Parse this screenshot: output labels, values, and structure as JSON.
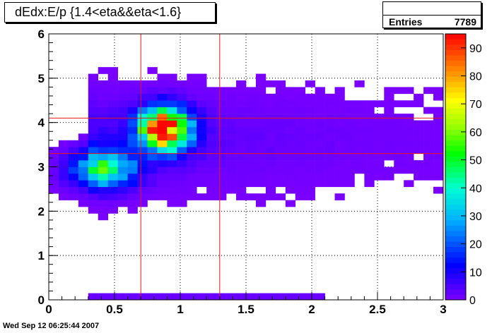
{
  "header": {
    "title": "dEdx:E/p {1.4<eta&&eta<1.6}"
  },
  "stats": {
    "entries_label": "Entries",
    "entries_value": "7789"
  },
  "footer": {
    "date": "Wed Sep 12 06:25:44 2007"
  },
  "colors": {
    "cut_line": "#e8161a",
    "grid": "#000000",
    "background": "#ffffff"
  },
  "chart_data": {
    "type": "heatmap",
    "title": "dEdx:E/p {1.4<eta&&eta<1.6}",
    "xlabel": "",
    "ylabel": "",
    "xlim": [
      0,
      3
    ],
    "ylim": [
      0,
      6
    ],
    "zlim": [
      0,
      95
    ],
    "bins": {
      "nx": 40,
      "ny": 40
    },
    "x_ticks": [
      0,
      0.5,
      1,
      1.5,
      2,
      2.5,
      3
    ],
    "x_tick_labels": [
      "0",
      "0.5",
      "1",
      "1.5",
      "2",
      "2.5",
      "3"
    ],
    "y_ticks": [
      0,
      1,
      2,
      3,
      4,
      5,
      6
    ],
    "y_tick_labels": [
      "0",
      "1",
      "2",
      "3",
      "4",
      "5",
      "6"
    ],
    "z_ticks": [
      0,
      10,
      20,
      30,
      40,
      50,
      60,
      70,
      80,
      90
    ],
    "z_tick_labels": [
      "0",
      "10",
      "20",
      "30",
      "40",
      "50",
      "60",
      "70",
      "80",
      "90"
    ],
    "grid": true,
    "cut_lines": {
      "vertical_x": [
        0.7,
        1.3
      ],
      "horizontal_y": [
        3.3,
        4.1
      ]
    },
    "clusters": [
      {
        "x": 0.88,
        "y": 3.85,
        "sx": 0.13,
        "sy": 0.32,
        "peak": 95
      },
      {
        "x": 0.42,
        "y": 2.95,
        "sx": 0.16,
        "sy": 0.28,
        "peak": 45
      }
    ],
    "entries": 7789
  }
}
